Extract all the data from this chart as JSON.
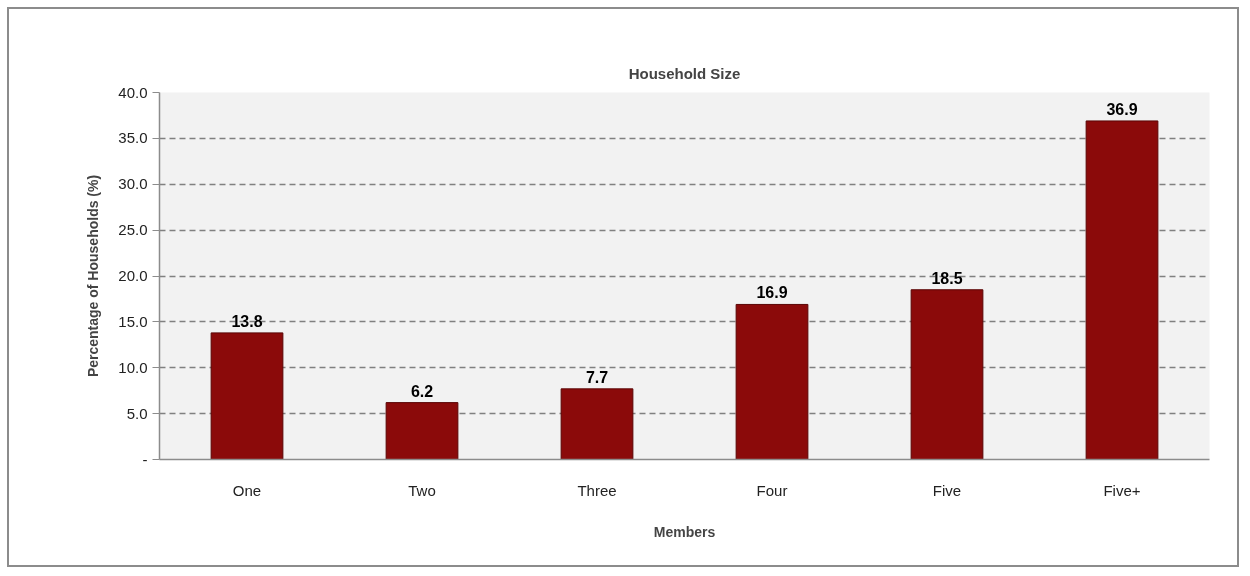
{
  "chart_data": {
    "type": "bar",
    "title": "Household Size",
    "xlabel": "Members",
    "ylabel": "Percentage of Households (%)",
    "categories": [
      "One",
      "Two",
      "Three",
      "Four",
      "Five",
      "Five+"
    ],
    "values": [
      13.8,
      6.2,
      7.7,
      16.9,
      18.5,
      36.9
    ],
    "color": "#8b0a0a",
    "ylim": [
      0,
      40
    ],
    "yticks": [
      {
        "value": 0,
        "label": "-"
      },
      {
        "value": 5,
        "label": "5.0"
      },
      {
        "value": 10,
        "label": "10.0"
      },
      {
        "value": 15,
        "label": "15.0"
      },
      {
        "value": 20,
        "label": "20.0"
      },
      {
        "value": 25,
        "label": "25.0"
      },
      {
        "value": 30,
        "label": "30.0"
      },
      {
        "value": 35,
        "label": "35.0"
      },
      {
        "value": 40,
        "label": "40.0"
      }
    ],
    "grid": "y",
    "data_labels": true
  }
}
